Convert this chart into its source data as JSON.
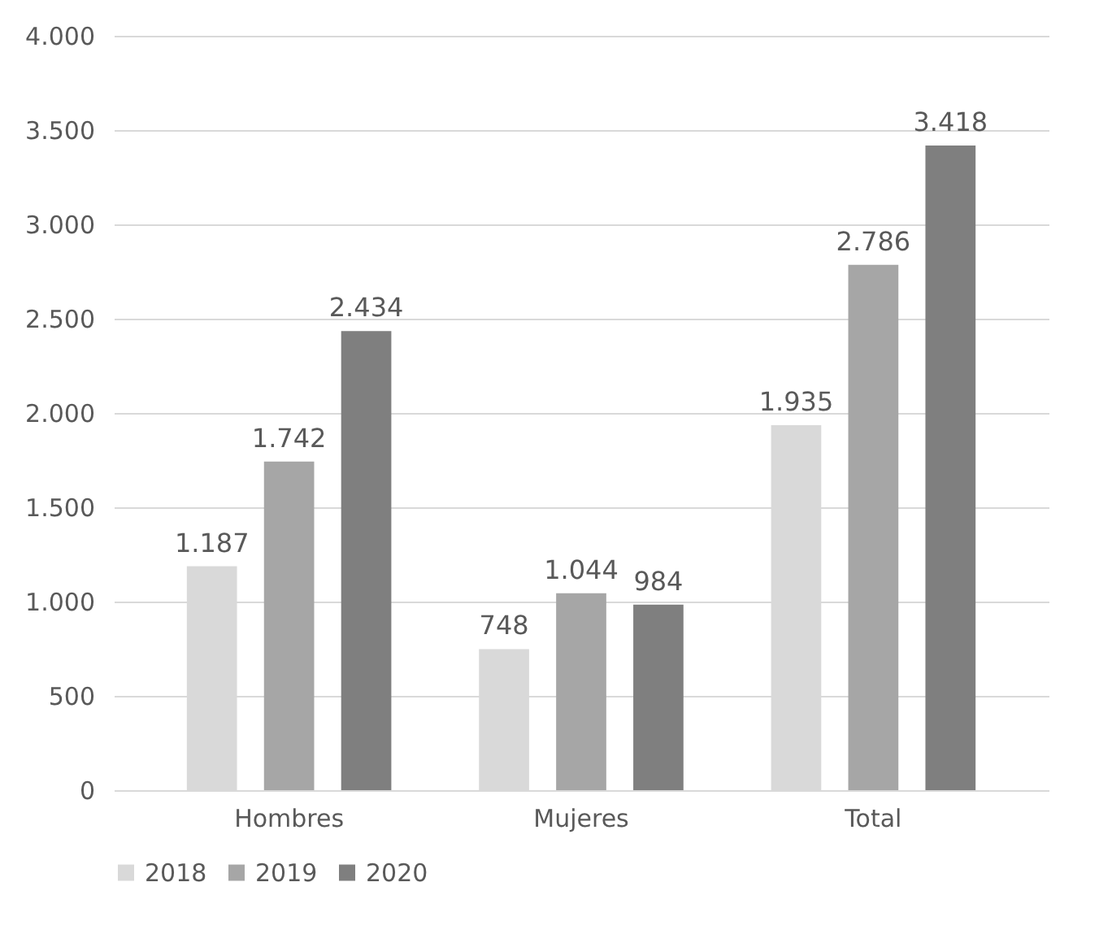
{
  "chart_data": {
    "type": "bar",
    "categories": [
      "Hombres",
      "Mujeres",
      "Total"
    ],
    "series": [
      {
        "name": "2018",
        "color": "#d9d9d9",
        "values": [
          1187,
          748,
          1935
        ],
        "value_labels": [
          "1.187",
          "748",
          "1.935"
        ]
      },
      {
        "name": "2019",
        "color": "#a6a6a6",
        "values": [
          1742,
          1044,
          2786
        ],
        "value_labels": [
          "1.742",
          "1.044",
          "2.786"
        ]
      },
      {
        "name": "2020",
        "color": "#7f7f7f",
        "values": [
          2434,
          984,
          3418
        ],
        "value_labels": [
          "2.434",
          "984",
          "3.418"
        ]
      }
    ],
    "ylim": [
      0,
      4000
    ],
    "yticks": [
      {
        "value": 0,
        "label": "0"
      },
      {
        "value": 500,
        "label": "500"
      },
      {
        "value": 1000,
        "label": "1.000"
      },
      {
        "value": 1500,
        "label": "1.500"
      },
      {
        "value": 2000,
        "label": "2.000"
      },
      {
        "value": 2500,
        "label": "2.500"
      },
      {
        "value": 3000,
        "label": "3.000"
      },
      {
        "value": 3500,
        "label": "3.500"
      },
      {
        "value": 4000,
        "label": "4.000"
      }
    ],
    "grid": "y",
    "legend": "bottom"
  }
}
